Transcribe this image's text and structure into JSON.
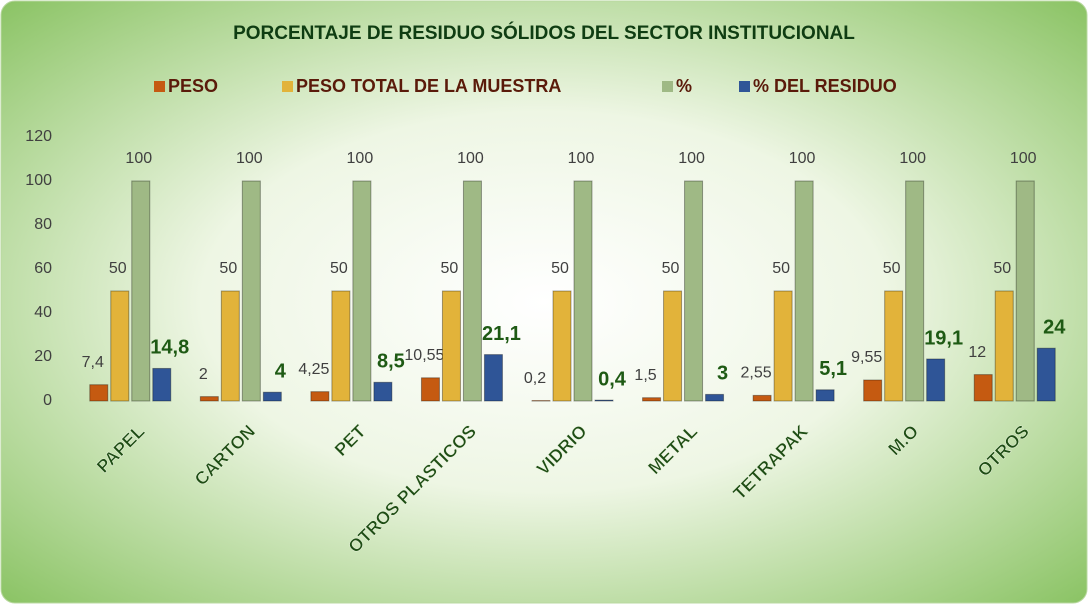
{
  "chart_data": {
    "type": "bar",
    "title": "PORCENTAJE DE RESIDUO SÓLIDOS DEL SECTOR INSTITUCIONAL",
    "categories": [
      "PAPEL",
      "CARTON",
      "PET",
      "OTROS PLASTICOS",
      "VIDRIO",
      "METAL",
      "TETRAPAK",
      "M.O",
      "OTROS"
    ],
    "series": [
      {
        "name": "PESO",
        "color": "#c55a11",
        "values": [
          7.4,
          2,
          4.25,
          10.55,
          0.2,
          1.5,
          2.55,
          9.55,
          12
        ],
        "value_labels": [
          "7,4",
          "2",
          "4,25",
          "10,55",
          "0,2",
          "1,5",
          "2,55",
          "9,55",
          "12"
        ]
      },
      {
        "name": "PESO TOTAL DE LA MUESTRA",
        "color": "#e2b33a",
        "values": [
          50,
          50,
          50,
          50,
          50,
          50,
          50,
          50,
          50
        ]
      },
      {
        "name": "%",
        "color": "#9fb985",
        "values": [
          100,
          100,
          100,
          100,
          100,
          100,
          100,
          100,
          100
        ]
      },
      {
        "name": "% DEL RESIDUO",
        "color": "#2f5597",
        "values": [
          14.8,
          4,
          8.5,
          21.1,
          0.4,
          3,
          5.1,
          19.1,
          24
        ],
        "value_labels": [
          "14,8",
          "4",
          "8,5",
          "21,1",
          "0,4",
          "3",
          "5,1",
          "19,1",
          "24"
        ]
      }
    ],
    "ylim": [
      0,
      120
    ],
    "yticks": [
      0,
      20,
      40,
      60,
      80,
      100,
      120
    ],
    "grid": false,
    "legend": "top"
  }
}
